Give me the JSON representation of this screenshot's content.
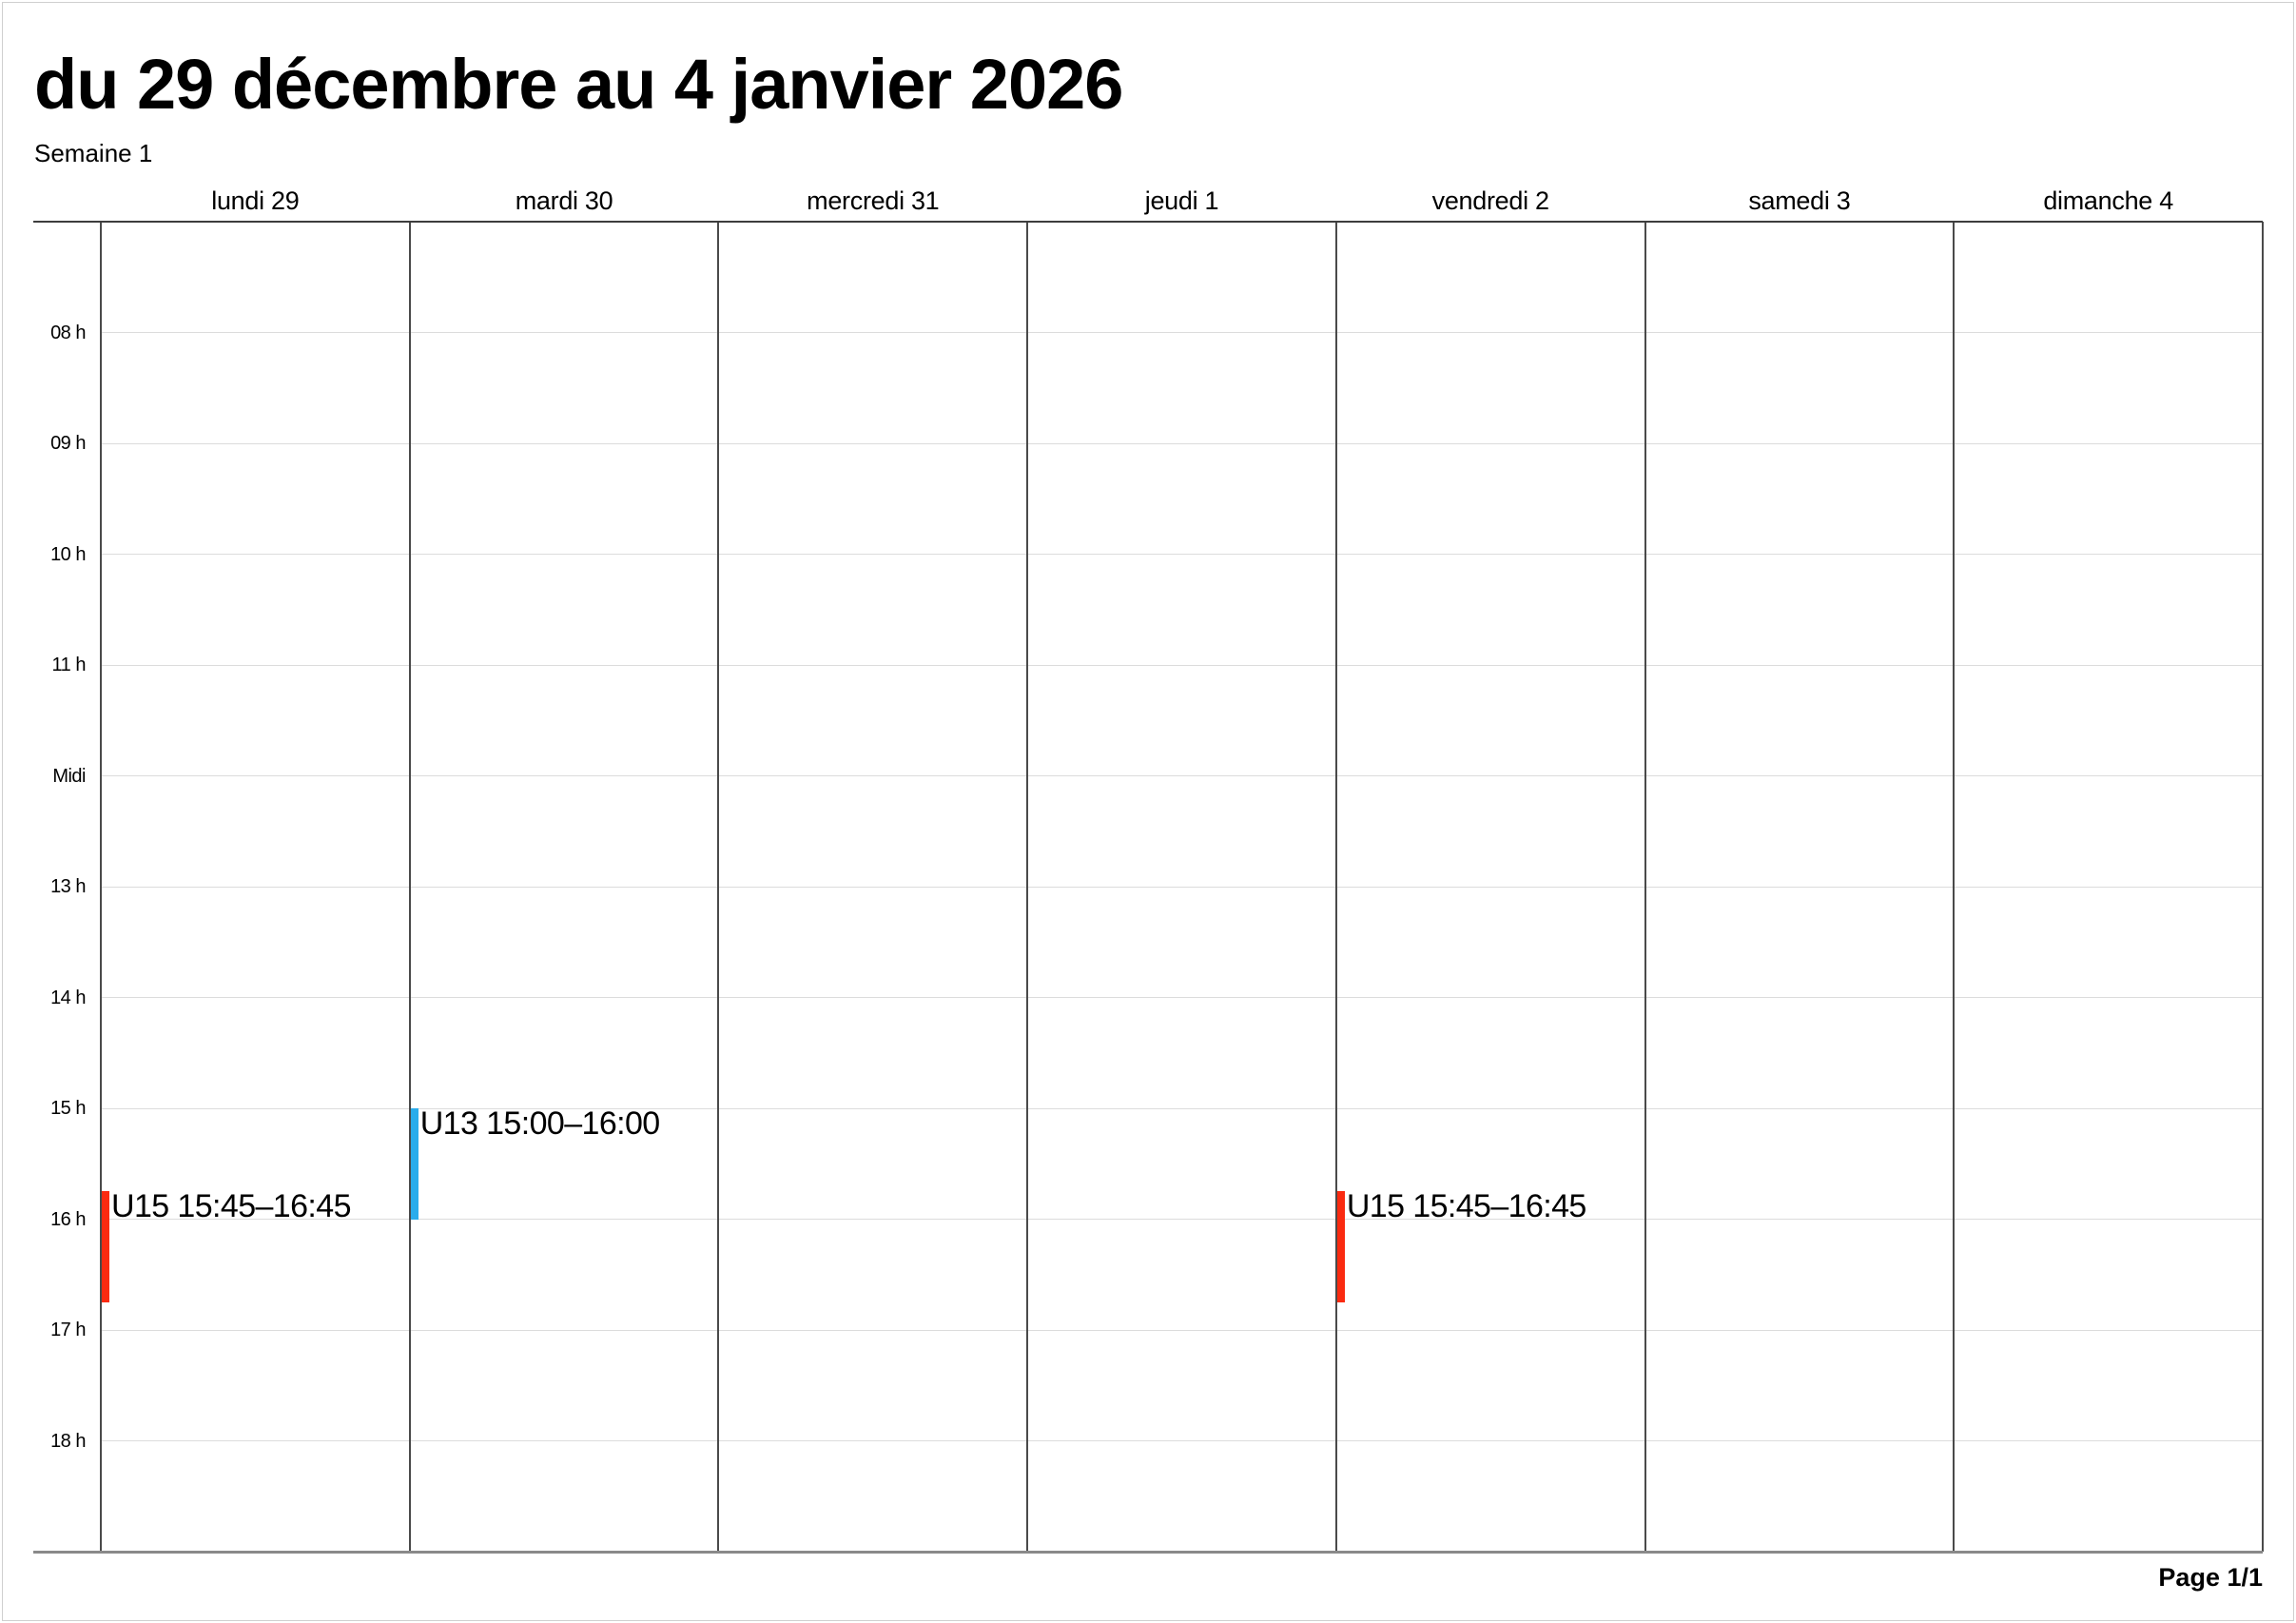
{
  "page": {
    "title": "du 29 décembre au 4 janvier 2026",
    "subtitle": "Semaine 1",
    "page_label": "Page 1/1"
  },
  "calendar": {
    "day_headers": [
      "lundi 29",
      "mardi 30",
      "mercredi 31",
      "jeudi 1",
      "vendredi 2",
      "samedi 3",
      "dimanche 4"
    ],
    "time_labels": [
      "08 h",
      "09 h",
      "10 h",
      "11 h",
      "Midi",
      "13 h",
      "14 h",
      "15 h",
      "16 h",
      "17 h",
      "18 h"
    ],
    "events": [
      {
        "day_index": 0,
        "day": "lundi 29",
        "label": "U15 15:45–16:45",
        "start": "15:45",
        "end": "16:45",
        "color": "#fa2a10"
      },
      {
        "day_index": 1,
        "day": "mardi 30",
        "label": "U13 15:00–16:00",
        "start": "15:00",
        "end": "16:00",
        "color": "#2aaceb"
      },
      {
        "day_index": 4,
        "day": "vendredi 2",
        "label": "U15 15:45–16:45",
        "start": "15:45",
        "end": "16:45",
        "color": "#fa2a10"
      }
    ]
  },
  "colors": {
    "event_red": "#fa2a10",
    "event_blue": "#2aaceb",
    "grid_line_dark": "#4a4a4a",
    "grid_line_light": "#dcdcdc"
  }
}
